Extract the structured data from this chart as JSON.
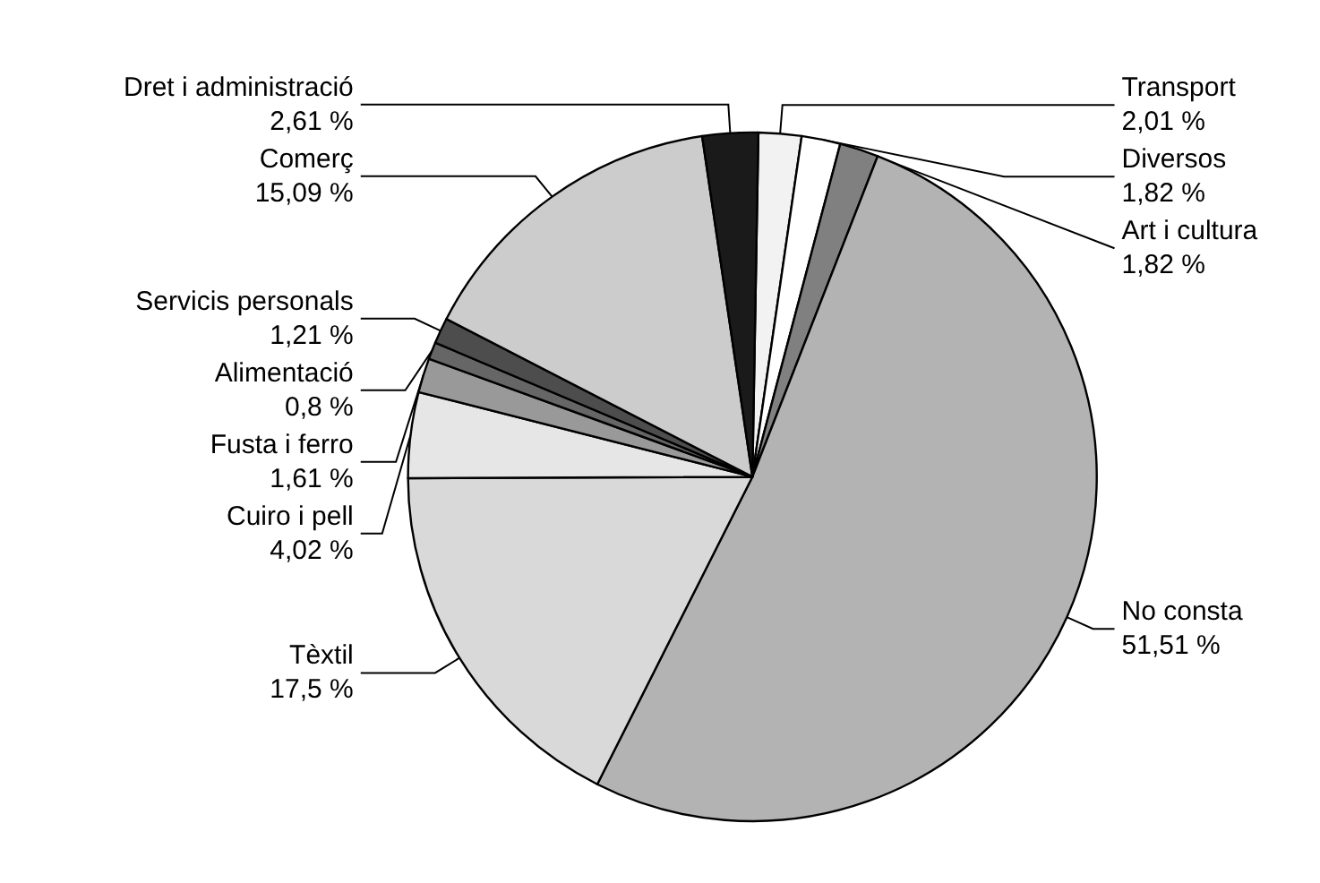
{
  "chart_data": {
    "type": "pie",
    "categories": [
      "Transport",
      "Diversos",
      "Art i cultura",
      "No consta",
      "Tèxtil",
      "Cuiro i pell",
      "Fusta i ferro",
      "Alimentació",
      "Servicis personals",
      "Comerç",
      "Dret i administració"
    ],
    "values": [
      2.01,
      1.82,
      1.82,
      51.51,
      17.5,
      4.02,
      1.61,
      0.8,
      1.21,
      15.09,
      2.61
    ],
    "value_labels": [
      "2,01 %",
      "1,82 %",
      "1,82 %",
      "51,51 %",
      "17,5 %",
      "4,02 %",
      "1,61 %",
      "0,8 %",
      "1,21 %",
      "15,09 %",
      "2,61 %"
    ],
    "colors": [
      "#f2f2f2",
      "#ffffff",
      "#808080",
      "#b3b3b3",
      "#d9d9d9",
      "#e6e6e6",
      "#999999",
      "#666666",
      "#4d4d4d",
      "#cccccc",
      "#1a1a1a"
    ],
    "legend": false
  }
}
